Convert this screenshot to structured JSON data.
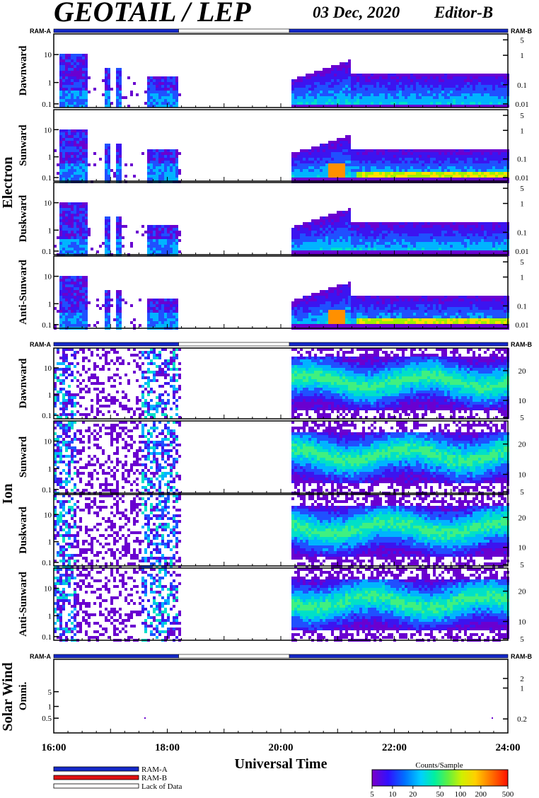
{
  "header": {
    "title": "GEOTAIL / LEP",
    "date": "03 Dec, 2020",
    "editor": "Editor-B"
  },
  "ram_labels": {
    "left": "RAM-A",
    "right": "RAM-B"
  },
  "groups": {
    "electron": "Electron",
    "ion": "Ion",
    "solar_wind": "Solar Wind"
  },
  "colors": {
    "ram_a": "#1428c8",
    "ram_b": "#e01010",
    "lack_of_data": "#ffffff",
    "colorbar": [
      "#6a00d0",
      "#3c14f0",
      "#2050ff",
      "#00b4ff",
      "#00e0c8",
      "#40f080",
      "#a0f000",
      "#ffe000",
      "#ff9000",
      "#ff2000"
    ]
  },
  "chart_data": {
    "type": "heatmap",
    "x_range_ut_hours": [
      16,
      24
    ],
    "xlabel": "Universal Time",
    "x_ticks": [
      "16:00",
      "18:00",
      "20:00",
      "22:00",
      "24:00"
    ],
    "ram_status_bar": [
      {
        "from": 16.0,
        "to": 18.2,
        "state": "RAM-A"
      },
      {
        "from": 18.2,
        "to": 20.15,
        "state": "Lack of Data"
      },
      {
        "from": 20.15,
        "to": 24.0,
        "state": "RAM-A"
      }
    ],
    "data_gaps": [
      {
        "from": 18.2,
        "to": 20.15
      }
    ],
    "panels": [
      {
        "group": "electron",
        "direction": "Dawnward",
        "left_ticks": [
          "10",
          "1",
          "0.1"
        ],
        "right_ticks": [
          "5",
          "1",
          "0.1",
          "0.01"
        ]
      },
      {
        "group": "electron",
        "direction": "Sunward",
        "left_ticks": [
          "10",
          "1",
          "0.1"
        ],
        "right_ticks": [
          "5",
          "1",
          "0.1",
          "0.01"
        ]
      },
      {
        "group": "electron",
        "direction": "Duskward",
        "left_ticks": [
          "10",
          "1",
          "0.1"
        ],
        "right_ticks": [
          "5",
          "1",
          "0.1",
          "0.01"
        ]
      },
      {
        "group": "electron",
        "direction": "Anti-Sunward",
        "left_ticks": [
          "10",
          "1",
          "0.1"
        ],
        "right_ticks": [
          "5",
          "1",
          "0.1",
          "0.01"
        ]
      },
      {
        "group": "ion",
        "direction": "Dawnward",
        "left_ticks": [
          "10",
          "1",
          "0.1"
        ],
        "right_ticks": [
          "20",
          "10",
          "5"
        ]
      },
      {
        "group": "ion",
        "direction": "Sunward",
        "left_ticks": [
          "10",
          "1",
          "0.1"
        ],
        "right_ticks": [
          "20",
          "10",
          "5"
        ]
      },
      {
        "group": "ion",
        "direction": "Duskward",
        "left_ticks": [
          "10",
          "1",
          "0.1"
        ],
        "right_ticks": [
          "20",
          "10",
          "5"
        ]
      },
      {
        "group": "ion",
        "direction": "Anti-Sunward",
        "left_ticks": [
          "10",
          "1",
          "0.1"
        ],
        "right_ticks": [
          "20",
          "10",
          "5"
        ]
      },
      {
        "group": "solar_wind",
        "direction": "Omni.",
        "left_ticks": [
          "5",
          "1",
          "0.5"
        ],
        "right_ticks": [
          "2",
          "1",
          "0.2"
        ]
      }
    ],
    "legend": {
      "items": [
        {
          "label": "RAM-A",
          "color": "#1428c8"
        },
        {
          "label": "RAM-B",
          "color": "#e01010"
        },
        {
          "label": "Lack of Data",
          "color": "#ffffff"
        }
      ]
    },
    "colorbar": {
      "title": "Counts/Sample",
      "ticks": [
        "5",
        "10",
        "20",
        "50",
        "100",
        "200",
        "500"
      ]
    }
  }
}
